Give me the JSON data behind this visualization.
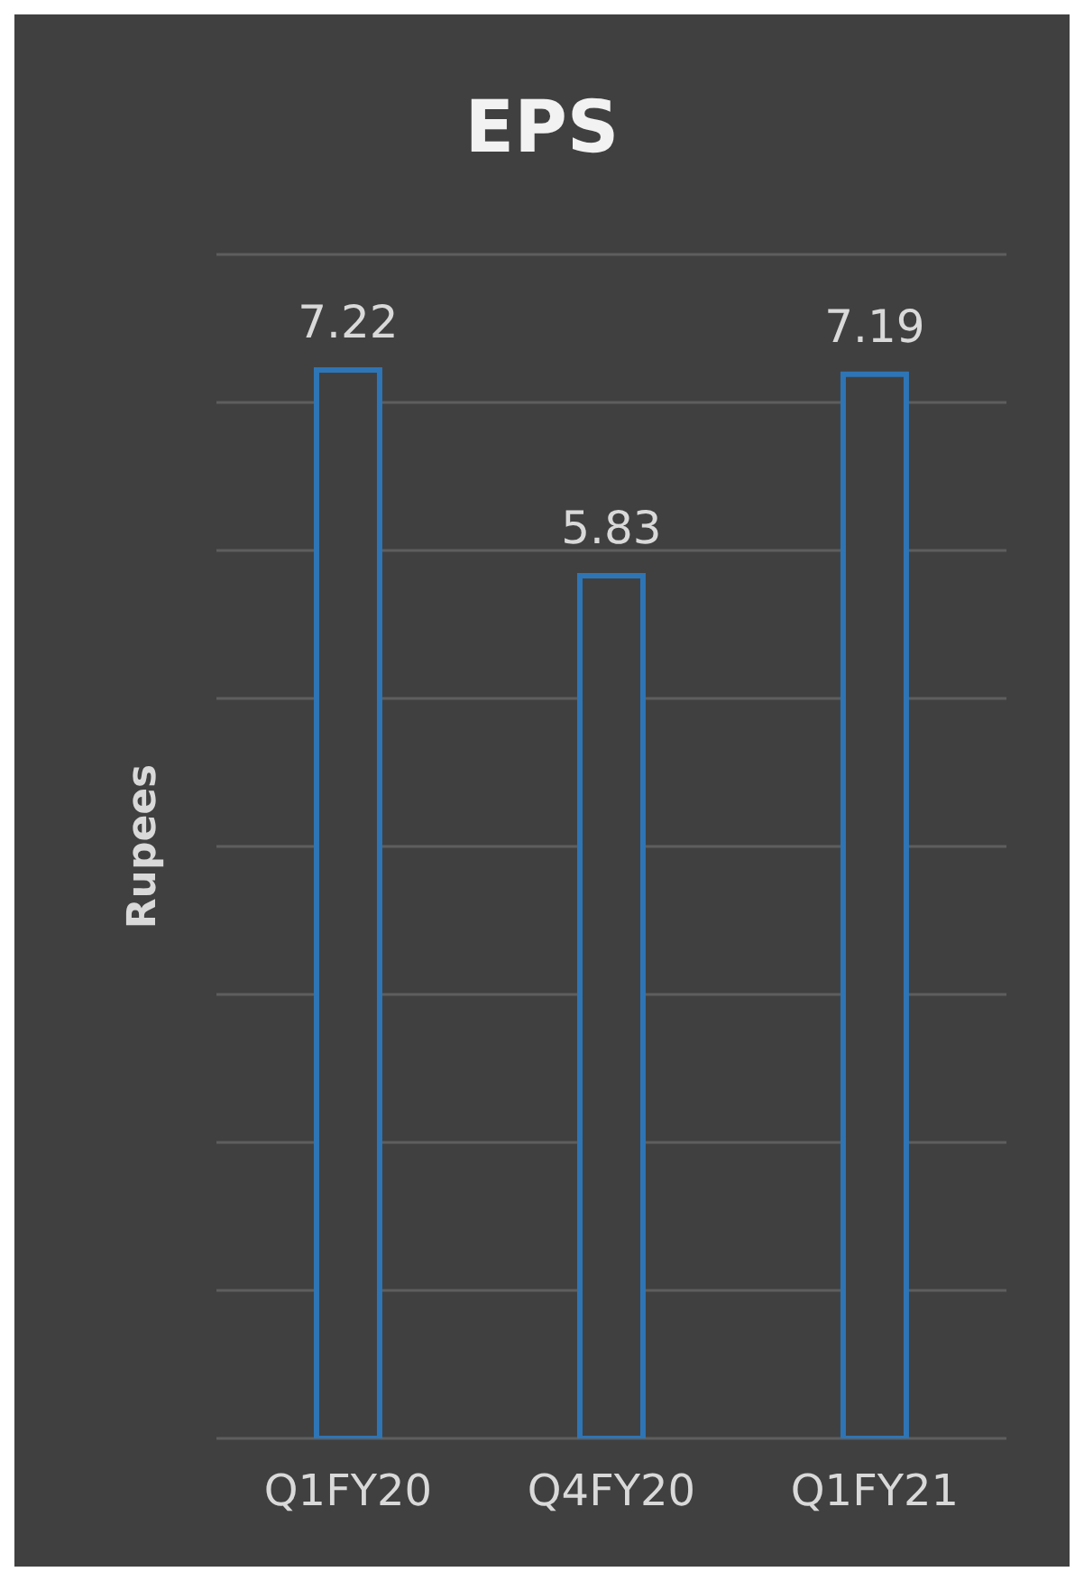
{
  "chart_data": {
    "type": "bar",
    "title": "EPS",
    "ylabel": "Rupees",
    "categories": [
      "Q1FY20",
      "Q4FY20",
      "Q1FY21"
    ],
    "values": [
      7.22,
      5.83,
      7.19
    ],
    "color": "#2e75b6",
    "ylim": [
      0,
      8
    ],
    "yticks": [
      {
        "value": 0,
        "label": null
      },
      {
        "value": 1,
        "label": null
      },
      {
        "value": 2,
        "label": null
      },
      {
        "value": 3,
        "label": null
      },
      {
        "value": 4,
        "label": null
      },
      {
        "value": 5,
        "label": null
      },
      {
        "value": 6,
        "label": null
      },
      {
        "value": 7,
        "label": null
      },
      {
        "value": 8,
        "label": null
      }
    ],
    "tick_labels": "x",
    "grid": "y",
    "data_labels": true,
    "legend": false
  }
}
